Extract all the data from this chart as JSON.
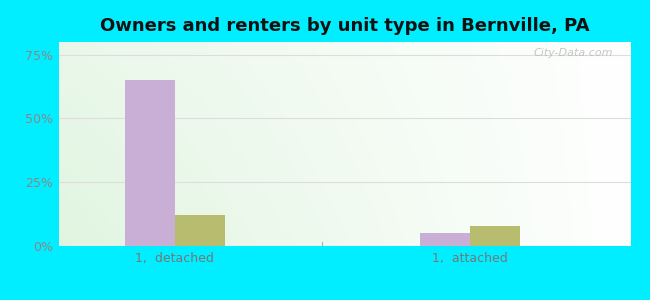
{
  "title": "Owners and renters by unit type in Bernville, PA",
  "categories": [
    "1,  detached",
    "1,  attached"
  ],
  "owner_values": [
    65.0,
    5.0
  ],
  "renter_values": [
    12.0,
    8.0
  ],
  "owner_color": "#c9aed6",
  "renter_color": "#b8bc6e",
  "ylim": [
    0,
    80
  ],
  "yticks": [
    0,
    25,
    50,
    75
  ],
  "ytick_labels": [
    "0%",
    "25%",
    "50%",
    "75%"
  ],
  "background_color": "#00eeff",
  "watermark": "City-Data.com",
  "bar_width": 0.28,
  "title_fontsize": 13
}
